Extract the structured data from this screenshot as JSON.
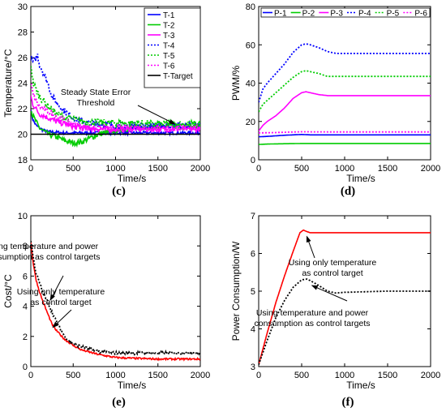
{
  "chart_data": [
    {
      "type": "line",
      "panel_label": "(c)",
      "xlabel": "Time/s",
      "ylabel": "Temperature/°C",
      "xlim": [
        0,
        2000
      ],
      "ylim": [
        18,
        30
      ],
      "xticks": [
        0,
        500,
        1000,
        1500,
        2000
      ],
      "yticks": [
        18,
        20,
        22,
        24,
        26,
        28,
        30
      ],
      "legend_position": "top-right",
      "annotation": {
        "text": [
          "Steady State Error",
          "Threshold"
        ],
        "arrow_target": [
          1700,
          20.8
        ]
      },
      "series": [
        {
          "name": "T-1",
          "color": "#0000ff",
          "dash": "solid",
          "noise": 0.12,
          "x": [
            0,
            20,
            60,
            100,
            150,
            200,
            300,
            400,
            500,
            700,
            1000,
            1500,
            2000
          ],
          "y": [
            22,
            21.2,
            20.7,
            20.5,
            20.3,
            20.2,
            20.15,
            20.1,
            20.1,
            20.1,
            20.1,
            20.1,
            20.1
          ]
        },
        {
          "name": "T-2",
          "color": "#00cc00",
          "dash": "solid",
          "noise": 0.22,
          "x": [
            0,
            20,
            60,
            100,
            200,
            300,
            400,
            500,
            600,
            700,
            800,
            1000,
            1200,
            1500,
            2000
          ],
          "y": [
            22,
            21.5,
            21,
            20.5,
            20,
            19.8,
            19.5,
            19.3,
            19.4,
            19.7,
            20,
            20.3,
            20.5,
            20.6,
            20.6
          ]
        },
        {
          "name": "T-3",
          "color": "#ff00ff",
          "dash": "solid",
          "noise": 0.22,
          "x": [
            0,
            20,
            60,
            100,
            200,
            300,
            400,
            500,
            600,
            800,
            1000,
            1500,
            2000
          ],
          "y": [
            23,
            22.4,
            22,
            21.6,
            21.3,
            21,
            20.8,
            20.6,
            20.5,
            20.4,
            20.4,
            20.4,
            20.4
          ]
        },
        {
          "name": "T-4",
          "color": "#0000ff",
          "dash": "dotted",
          "noise": 0.25,
          "x": [
            0,
            30,
            60,
            80,
            100,
            150,
            200,
            250,
            300,
            400,
            500,
            600,
            800,
            1000,
            1500,
            2000
          ],
          "y": [
            26,
            25.6,
            26,
            26.2,
            25.5,
            24.8,
            24,
            23,
            22.5,
            21.8,
            21.3,
            21,
            20.8,
            20.7,
            20.7,
            20.7
          ]
        },
        {
          "name": "T-5",
          "color": "#00cc00",
          "dash": "dotted",
          "noise": 0.28,
          "x": [
            0,
            30,
            60,
            100,
            150,
            200,
            300,
            400,
            500,
            600,
            800,
            1000,
            1500,
            2000
          ],
          "y": [
            25.5,
            24,
            23.5,
            23,
            22.6,
            22.2,
            21.6,
            21.3,
            21.2,
            21,
            20.9,
            20.9,
            20.8,
            20.8
          ]
        },
        {
          "name": "T-6",
          "color": "#ff00ff",
          "dash": "dotted",
          "noise": 0.22,
          "x": [
            0,
            30,
            60,
            100,
            200,
            300,
            400,
            500,
            600,
            800,
            1000,
            1500,
            2000
          ],
          "y": [
            24,
            23,
            22.6,
            22.2,
            21.8,
            21.4,
            21,
            20.8,
            20.6,
            20.5,
            20.5,
            20.5,
            20.5
          ]
        },
        {
          "name": "T-Target",
          "color": "#000000",
          "dash": "solid",
          "noise": 0,
          "x": [
            0,
            2000
          ],
          "y": [
            20,
            20
          ]
        }
      ]
    },
    {
      "type": "line",
      "panel_label": "(d)",
      "xlabel": "Time/s",
      "ylabel": "PWM/%",
      "xlim": [
        0,
        2000
      ],
      "ylim": [
        0,
        80
      ],
      "xticks": [
        0,
        500,
        1000,
        1500,
        2000
      ],
      "yticks": [
        0,
        20,
        40,
        60,
        80
      ],
      "legend_position": "top (horizontal)",
      "series": [
        {
          "name": "P-1",
          "color": "#0000ff",
          "dash": "solid",
          "x": [
            0,
            100,
            200,
            300,
            400,
            500,
            600,
            800,
            1000,
            2000
          ],
          "y": [
            12,
            12.2,
            12.5,
            12.8,
            13,
            13.2,
            13,
            13,
            13,
            13
          ]
        },
        {
          "name": "P-2",
          "color": "#00cc00",
          "dash": "solid",
          "x": [
            0,
            100,
            200,
            500,
            1000,
            2000
          ],
          "y": [
            8,
            8.2,
            8.3,
            8.5,
            8.5,
            8.5
          ]
        },
        {
          "name": "P-3",
          "color": "#ff00ff",
          "dash": "solid",
          "x": [
            0,
            50,
            100,
            200,
            300,
            400,
            500,
            550,
            600,
            700,
            800,
            1000,
            1500,
            2000
          ],
          "y": [
            15,
            18,
            20,
            23,
            27,
            32,
            35,
            35.5,
            35,
            34,
            33.5,
            33.5,
            33.5,
            33.5
          ]
        },
        {
          "name": "P-4",
          "color": "#0000ff",
          "dash": "dotted",
          "x": [
            0,
            50,
            100,
            200,
            300,
            400,
            500,
            550,
            600,
            700,
            800,
            900,
            1000,
            1500,
            2000
          ],
          "y": [
            30,
            37,
            40,
            45,
            50,
            56,
            60,
            60.5,
            60,
            58.5,
            56.5,
            55.5,
            55.5,
            55.5,
            55.5
          ]
        },
        {
          "name": "P-5",
          "color": "#00cc00",
          "dash": "dotted",
          "x": [
            0,
            50,
            100,
            200,
            300,
            400,
            500,
            550,
            600,
            700,
            800,
            1000,
            1500,
            2000
          ],
          "y": [
            25,
            29,
            31,
            35,
            39,
            43,
            46,
            46.5,
            46,
            45,
            43.5,
            43.5,
            43.5,
            43.5
          ]
        },
        {
          "name": "P-6",
          "color": "#ff00ff",
          "dash": "dotted",
          "x": [
            0,
            200,
            400,
            500,
            1000,
            2000
          ],
          "y": [
            14,
            14.2,
            14.5,
            14.6,
            14.5,
            14.5
          ]
        }
      ]
    },
    {
      "type": "line",
      "panel_label": "(e)",
      "xlabel": "Time/s",
      "ylabel": "Cost/°C",
      "xlim": [
        0,
        2000
      ],
      "ylim": [
        0,
        10
      ],
      "xticks": [
        0,
        500,
        1000,
        1500,
        2000
      ],
      "yticks": [
        0,
        2,
        4,
        6,
        8,
        10
      ],
      "annotations": [
        {
          "text": [
            "Using temperature and power",
            "consumption as control targets"
          ],
          "arrow_target": [
            230,
            4.4
          ]
        },
        {
          "text": [
            "Using only temperature",
            "as control target"
          ],
          "arrow_target": [
            260,
            2.6
          ]
        }
      ],
      "series": [
        {
          "name": "",
          "color": "#ff0000",
          "dash": "solid",
          "noise": 0.06,
          "x": [
            0,
            30,
            60,
            100,
            150,
            200,
            250,
            300,
            400,
            500,
            600,
            800,
            1000,
            1200,
            1500,
            2000
          ],
          "y": [
            8.2,
            6.8,
            5.8,
            5,
            4.2,
            3.5,
            2.8,
            2.4,
            1.8,
            1.4,
            1.1,
            0.8,
            0.6,
            0.55,
            0.5,
            0.5
          ]
        },
        {
          "name": "",
          "color": "#000000",
          "dash": "dotted",
          "noise": 0.1,
          "x": [
            0,
            30,
            60,
            100,
            150,
            200,
            250,
            300,
            400,
            500,
            600,
            800,
            1000,
            1500,
            2000
          ],
          "y": [
            8.3,
            7.2,
            6.2,
            5.6,
            4.8,
            4.3,
            3.6,
            3,
            2,
            1.5,
            1.3,
            1,
            0.9,
            0.9,
            0.9
          ]
        }
      ]
    },
    {
      "type": "line",
      "panel_label": "(f)",
      "xlabel": "Time/s",
      "ylabel": "Power Consumption/W",
      "xlim": [
        0,
        2000
      ],
      "ylim": [
        3,
        7
      ],
      "xticks": [
        0,
        500,
        1000,
        1500,
        2000
      ],
      "yticks": [
        3,
        4,
        5,
        6,
        7
      ],
      "annotations": [
        {
          "text": [
            "Using only temperature",
            "as control target"
          ],
          "arrow_target": [
            560,
            6.45
          ]
        },
        {
          "text": [
            "Using temperature and power",
            "consumption as control targets"
          ],
          "arrow_target": [
            620,
            5.15
          ]
        }
      ],
      "series": [
        {
          "name": "",
          "color": "#ff0000",
          "dash": "solid",
          "x": [
            0,
            100,
            200,
            300,
            400,
            480,
            520,
            560,
            600,
            800,
            1000,
            1500,
            2000
          ],
          "y": [
            3.05,
            3.9,
            4.7,
            5.4,
            6.05,
            6.55,
            6.62,
            6.58,
            6.55,
            6.55,
            6.55,
            6.55,
            6.55
          ]
        },
        {
          "name": "",
          "color": "#000000",
          "dash": "dotted",
          "x": [
            0,
            100,
            200,
            300,
            400,
            500,
            560,
            600,
            700,
            800,
            900,
            1000,
            1500,
            2000
          ],
          "y": [
            3.05,
            3.7,
            4.3,
            4.75,
            5.1,
            5.3,
            5.32,
            5.28,
            5.15,
            5,
            4.95,
            4.97,
            5,
            5
          ]
        }
      ]
    }
  ]
}
